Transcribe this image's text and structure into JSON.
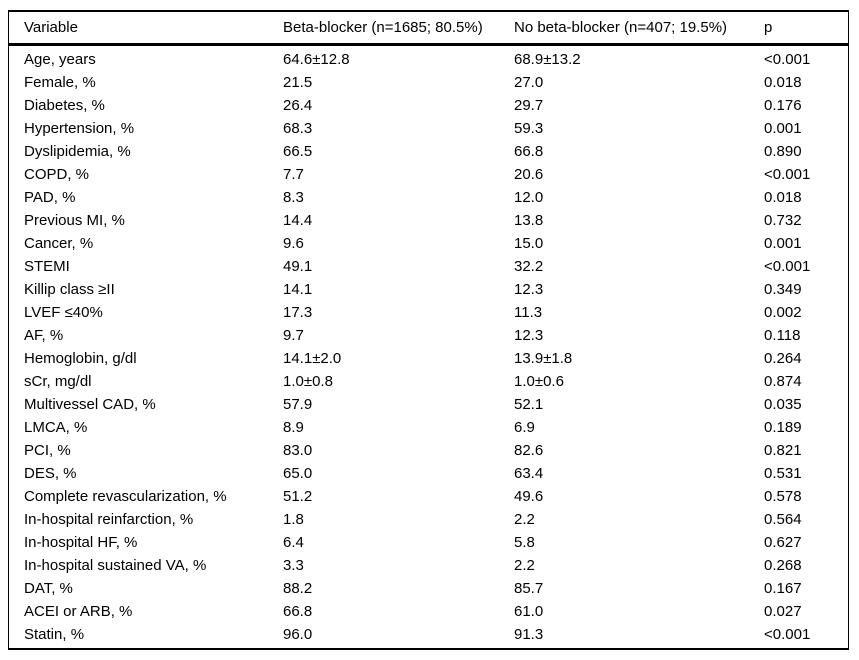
{
  "table": {
    "columns": [
      "Variable",
      "Beta-blocker (n=1685; 80.5%)",
      "No beta-blocker (n=407; 19.5%)",
      "p"
    ],
    "rows": [
      [
        "Age, years",
        "64.6±12.8",
        "68.9±13.2",
        "<0.001"
      ],
      [
        "Female, %",
        "21.5",
        "27.0",
        "0.018"
      ],
      [
        "Diabetes, %",
        "26.4",
        "29.7",
        "0.176"
      ],
      [
        "Hypertension, %",
        "68.3",
        "59.3",
        "0.001"
      ],
      [
        "Dyslipidemia, %",
        "66.5",
        "66.8",
        "0.890"
      ],
      [
        "COPD, %",
        "7.7",
        "20.6",
        "<0.001"
      ],
      [
        "PAD, %",
        "8.3",
        "12.0",
        "0.018"
      ],
      [
        "Previous MI, %",
        "14.4",
        "13.8",
        "0.732"
      ],
      [
        "Cancer, %",
        "9.6",
        "15.0",
        "0.001"
      ],
      [
        "STEMI",
        "49.1",
        "32.2",
        "<0.001"
      ],
      [
        "Killip class ≥II",
        "14.1",
        "12.3",
        "0.349"
      ],
      [
        "LVEF ≤40%",
        "17.3",
        "11.3",
        "0.002"
      ],
      [
        "AF, %",
        "9.7",
        "12.3",
        "0.118"
      ],
      [
        "Hemoglobin, g/dl",
        "14.1±2.0",
        "13.9±1.8",
        "0.264"
      ],
      [
        "sCr, mg/dl",
        "1.0±0.8",
        "1.0±0.6",
        "0.874"
      ],
      [
        "Multivessel CAD, %",
        "57.9",
        "52.1",
        "0.035"
      ],
      [
        "LMCA, %",
        "8.9",
        "6.9",
        "0.189"
      ],
      [
        "PCI, %",
        "83.0",
        "82.6",
        "0.821"
      ],
      [
        "DES, %",
        "65.0",
        "63.4",
        "0.531"
      ],
      [
        "Complete revascularization, %",
        "51.2",
        "49.6",
        "0.578"
      ],
      [
        "In-hospital reinfarction, %",
        "1.8",
        "2.2",
        "0.564"
      ],
      [
        "In-hospital HF, %",
        "6.4",
        "5.8",
        "0.627"
      ],
      [
        "In-hospital sustained VA, %",
        "3.3",
        "2.2",
        "0.268"
      ],
      [
        "DAT, %",
        "88.2",
        "85.7",
        "0.167"
      ],
      [
        "ACEI or ARB, %",
        "66.8",
        "61.0",
        "0.027"
      ],
      [
        "Statin, %",
        "96.0",
        "91.3",
        "<0.001"
      ]
    ]
  }
}
